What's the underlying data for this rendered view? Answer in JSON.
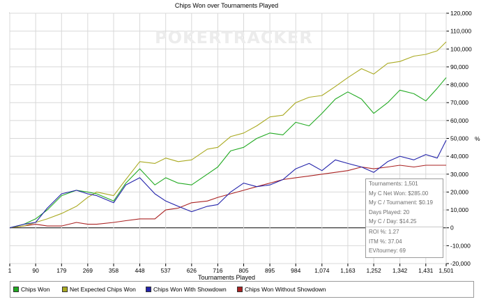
{
  "watermark": "POKERTRACKER",
  "stats": [
    {
      "label": "Tournaments: 1,501"
    },
    {
      "label": "My C Net Won: $285.00"
    },
    {
      "label": "My C / Tournament: $0.19"
    },
    {
      "label": "Days Played: 20"
    },
    {
      "label": "My C / Day: $14.25"
    },
    {
      "label": "ROI %: 1.27"
    },
    {
      "label": "ITM %: 37.04"
    },
    {
      "label": "EV/tourney: 69"
    }
  ],
  "colors": {
    "chips_won": "#22aa22",
    "net_expected": "#aaaa22",
    "with_showdown": "#2222aa",
    "without_showdown": "#aa2222",
    "grid": "#d8d8d8",
    "axis": "#000000"
  },
  "chart_data": {
    "type": "line",
    "title": "Chips Won over Tournaments Played",
    "xlabel": "Tournaments Played",
    "ylabel": "",
    "y_unit_label": "%",
    "xlim": [
      1,
      1501
    ],
    "ylim": [
      -20000,
      120000
    ],
    "x_ticks": [
      "1",
      "90",
      "179",
      "269",
      "358",
      "448",
      "537",
      "626",
      "716",
      "805",
      "895",
      "984",
      "1,074",
      "1,163",
      "1,252",
      "1,342",
      "1,431",
      "1,501"
    ],
    "y_ticks": [
      "120,000",
      "110,000",
      "100,000",
      "90,000",
      "80,000",
      "70,000",
      "60,000",
      "50,000",
      "40,000",
      "30,000",
      "20,000",
      "10,000",
      "0",
      "-10,000",
      "-20,000"
    ],
    "grid": true,
    "legend_position": "bottom",
    "series": [
      {
        "name": "Chips Won",
        "color": "#22aa22",
        "x": [
          1,
          50,
          90,
          130,
          179,
          230,
          269,
          300,
          358,
          400,
          448,
          500,
          537,
          580,
          626,
          680,
          716,
          760,
          805,
          850,
          895,
          940,
          984,
          1030,
          1074,
          1120,
          1163,
          1210,
          1252,
          1300,
          1342,
          1390,
          1431,
          1470,
          1501
        ],
        "y": [
          0,
          2000,
          5000,
          10000,
          18000,
          21000,
          20000,
          19000,
          15000,
          25000,
          33000,
          24000,
          28000,
          25000,
          24000,
          30000,
          34000,
          43000,
          45000,
          50000,
          53000,
          52000,
          59000,
          57000,
          64000,
          72000,
          76000,
          72000,
          64000,
          70000,
          77000,
          75000,
          71000,
          78000,
          84000
        ]
      },
      {
        "name": "Net Expected Chips Won",
        "color": "#aaaa22",
        "x": [
          1,
          50,
          90,
          130,
          179,
          230,
          269,
          300,
          358,
          400,
          448,
          500,
          537,
          580,
          626,
          680,
          716,
          760,
          805,
          850,
          895,
          940,
          984,
          1030,
          1074,
          1120,
          1163,
          1210,
          1252,
          1300,
          1342,
          1390,
          1431,
          1470,
          1501
        ],
        "y": [
          0,
          1000,
          3000,
          5000,
          8000,
          12000,
          17000,
          20000,
          18000,
          27000,
          37000,
          36000,
          39000,
          37000,
          38000,
          44000,
          45000,
          51000,
          53000,
          57000,
          62000,
          63000,
          70000,
          73000,
          74000,
          79000,
          84000,
          89000,
          86000,
          92000,
          93000,
          96000,
          97000,
          99000,
          104000
        ]
      },
      {
        "name": "Chips Won With Showdown",
        "color": "#2222aa",
        "x": [
          1,
          50,
          90,
          130,
          179,
          230,
          269,
          300,
          358,
          400,
          448,
          500,
          537,
          580,
          626,
          680,
          716,
          760,
          805,
          850,
          895,
          940,
          984,
          1030,
          1074,
          1120,
          1163,
          1210,
          1252,
          1300,
          1342,
          1390,
          1431,
          1470,
          1501
        ],
        "y": [
          0,
          2000,
          3000,
          11000,
          19000,
          21000,
          19000,
          18000,
          14000,
          24000,
          28000,
          19000,
          15000,
          12000,
          9000,
          12000,
          13000,
          20000,
          25000,
          23000,
          24000,
          27000,
          33000,
          36000,
          32000,
          38000,
          36000,
          34000,
          31000,
          37000,
          40000,
          38000,
          41000,
          39000,
          49000
        ]
      },
      {
        "name": "Chips Won Without Showdown",
        "color": "#aa2222",
        "x": [
          1,
          50,
          90,
          130,
          179,
          230,
          269,
          300,
          358,
          400,
          448,
          500,
          537,
          580,
          626,
          680,
          716,
          760,
          805,
          850,
          895,
          940,
          984,
          1030,
          1074,
          1120,
          1163,
          1210,
          1252,
          1300,
          1342,
          1390,
          1431,
          1470,
          1501
        ],
        "y": [
          0,
          1000,
          2000,
          1000,
          1000,
          3000,
          2000,
          2000,
          3000,
          4000,
          5000,
          5000,
          10000,
          11000,
          14000,
          15000,
          17000,
          19000,
          21000,
          23000,
          25000,
          27000,
          28000,
          29000,
          30000,
          31000,
          32000,
          34000,
          33000,
          34000,
          35000,
          34000,
          35000,
          35000,
          35000
        ]
      }
    ]
  }
}
